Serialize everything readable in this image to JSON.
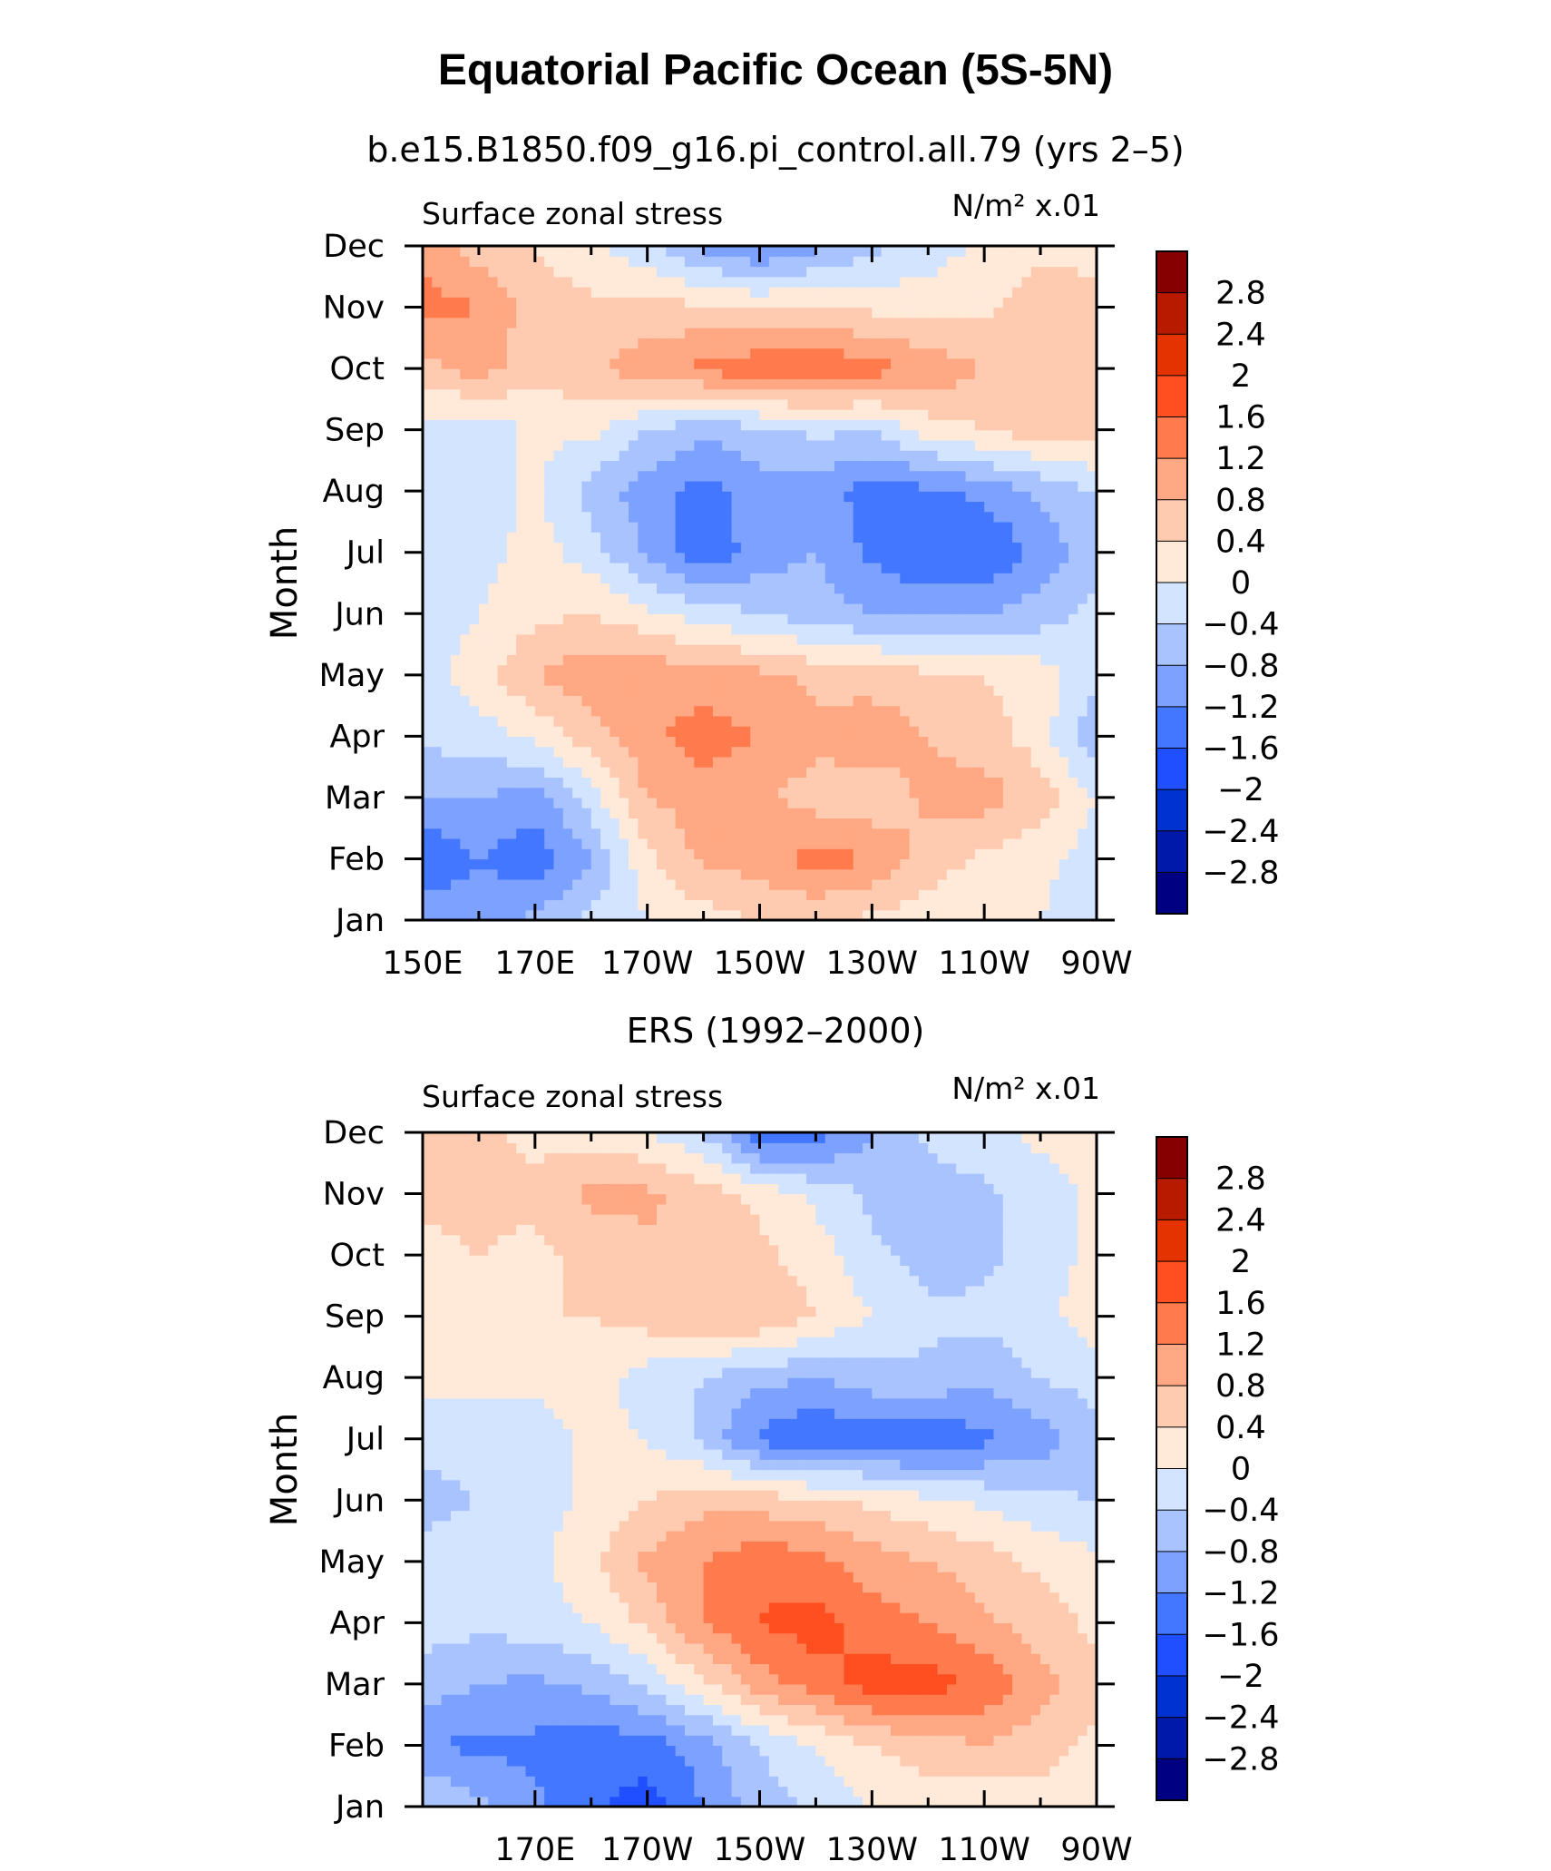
{
  "figure": {
    "title": "Equatorial Pacific Ocean (5S-5N)",
    "colors": {
      "levels": [
        -2.8,
        -2.4,
        -2.0,
        -1.6,
        -1.2,
        -0.8,
        -0.4,
        0,
        0.4,
        0.8,
        1.2,
        1.6,
        2.0,
        2.4,
        2.8
      ],
      "fills": [
        "#000083",
        "#0019a8",
        "#0032d2",
        "#1f4fff",
        "#4377ff",
        "#7ca1ff",
        "#a9c3ff",
        "#d2e4ff",
        "#ffe9d9",
        "#ffcbb0",
        "#ffa883",
        "#ff7b4d",
        "#ff4f20",
        "#e53300",
        "#b81a00",
        "#870000"
      ]
    },
    "legend_labels": [
      "2.8",
      "2.4",
      "2",
      "1.6",
      "1.2",
      "0.8",
      "0.4",
      "0",
      "−0.4",
      "−0.8",
      "−1.2",
      "−1.6",
      "−2",
      "−2.4",
      "−2.8"
    ]
  },
  "chart_data": [
    {
      "type": "heatmap",
      "subtitle": "b.e15.B1850.f09_g16.pi_control.all.79 (yrs 2–5)",
      "left_label": "Surface zonal stress",
      "right_label": "N/m² x.01",
      "ylabel": "Month",
      "xlabel": "",
      "x_ticks": [
        "150E",
        "170E",
        "170W",
        "150W",
        "130W",
        "110W",
        "90W"
      ],
      "y_ticks": [
        "Jan",
        "Feb",
        "Mar",
        "Apr",
        "May",
        "Jun",
        "Jul",
        "Aug",
        "Sep",
        "Oct",
        "Nov",
        "Dec"
      ],
      "x": [
        150,
        160,
        170,
        180,
        190,
        200,
        210,
        220,
        230,
        240,
        250,
        260,
        270
      ],
      "y": [
        "Jan",
        "Feb",
        "Mar",
        "Apr",
        "May",
        "Jun",
        "Jul",
        "Aug",
        "Sep",
        "Oct",
        "Nov",
        "Dec"
      ],
      "z": [
        [
          -0.9,
          -1.0,
          -0.7,
          -0.3,
          0.0,
          0.2,
          0.4,
          0.4,
          0.3,
          0.2,
          0.1,
          0.0,
          -0.2
        ],
        [
          -1.6,
          -1.2,
          -1.5,
          -0.8,
          0.3,
          0.9,
          1.0,
          1.4,
          1.2,
          0.6,
          0.3,
          0.1,
          -0.2
        ],
        [
          -0.8,
          -0.8,
          -1.0,
          -0.2,
          0.8,
          1.0,
          0.9,
          0.6,
          0.5,
          0.9,
          1.0,
          0.6,
          0.0
        ],
        [
          -0.3,
          -0.2,
          0.1,
          0.6,
          1.1,
          1.4,
          1.2,
          0.9,
          1.1,
          0.8,
          0.6,
          0.2,
          -0.8
        ],
        [
          -0.2,
          0.2,
          0.8,
          1.1,
          1.1,
          1.0,
          0.9,
          0.7,
          0.6,
          0.5,
          0.4,
          0.2,
          -0.3
        ],
        [
          -0.2,
          0.0,
          0.3,
          0.4,
          0.1,
          -0.2,
          -0.4,
          -0.6,
          -0.8,
          -0.9,
          -0.8,
          -0.6,
          -0.3
        ],
        [
          -0.4,
          -0.2,
          0.2,
          -0.2,
          -0.9,
          -1.5,
          -1.0,
          -0.8,
          -1.3,
          -1.6,
          -1.6,
          -1.1,
          -0.5
        ],
        [
          -0.2,
          -0.3,
          0.1,
          -0.6,
          -1.0,
          -1.4,
          -1.0,
          -1.0,
          -1.4,
          -1.3,
          -1.1,
          -0.7,
          -0.4
        ],
        [
          -0.2,
          -0.3,
          0.1,
          0.1,
          -0.4,
          -0.7,
          -0.5,
          -0.3,
          -0.4,
          0.2,
          0.4,
          0.6,
          0.6
        ],
        [
          0.6,
          1.0,
          0.5,
          0.7,
          1.1,
          1.3,
          1.5,
          1.6,
          1.4,
          1.1,
          0.8,
          0.7,
          0.6
        ],
        [
          1.4,
          1.2,
          0.6,
          0.5,
          0.5,
          0.5,
          0.4,
          0.4,
          0.3,
          0.2,
          0.3,
          0.6,
          0.5
        ],
        [
          1.0,
          0.6,
          0.4,
          0.1,
          -0.3,
          -0.9,
          -1.3,
          -0.9,
          -0.5,
          -0.2,
          0.1,
          0.3,
          0.3
        ]
      ]
    },
    {
      "type": "heatmap",
      "subtitle": "ERS (1992–2000)",
      "left_label": "Surface zonal stress",
      "right_label": "N/m² x.01",
      "ylabel": "Month",
      "xlabel": "",
      "x_ticks": [
        "170E",
        "170W",
        "150W",
        "130W",
        "110W",
        "90W"
      ],
      "y_ticks": [
        "Jan",
        "Feb",
        "Mar",
        "Apr",
        "May",
        "Jun",
        "Jul",
        "Aug",
        "Sep",
        "Oct",
        "Nov",
        "Dec"
      ],
      "x": [
        150,
        160,
        170,
        180,
        190,
        200,
        210,
        220,
        230,
        240,
        250,
        260,
        270
      ],
      "y": [
        "Jan",
        "Feb",
        "Mar",
        "Apr",
        "May",
        "Jun",
        "Jul",
        "Aug",
        "Sep",
        "Oct",
        "Nov",
        "Dec"
      ],
      "z": [
        [
          -0.3,
          -0.7,
          -1.1,
          -1.5,
          -1.8,
          -1.2,
          -0.6,
          -0.3,
          0.0,
          0.2,
          0.1,
          0.3,
          0.2
        ],
        [
          -1.2,
          -1.3,
          -1.3,
          -1.5,
          -1.4,
          -1.0,
          -0.4,
          0.0,
          0.4,
          0.6,
          0.8,
          0.5,
          0.3
        ],
        [
          -0.6,
          -0.8,
          -0.9,
          -0.7,
          -0.3,
          0.3,
          1.0,
          1.4,
          1.8,
          1.8,
          1.5,
          1.0,
          0.5
        ],
        [
          -0.2,
          -0.3,
          -0.2,
          0.0,
          0.5,
          1.2,
          1.6,
          1.8,
          1.4,
          1.2,
          0.9,
          0.6,
          0.3
        ],
        [
          -0.3,
          -0.2,
          -0.1,
          0.3,
          0.9,
          1.2,
          1.5,
          1.3,
          1.0,
          0.8,
          0.6,
          0.3,
          0.1
        ],
        [
          -0.5,
          -0.4,
          -0.2,
          0.1,
          0.4,
          0.7,
          0.6,
          0.5,
          0.3,
          0.1,
          -0.1,
          -0.3,
          -0.4
        ],
        [
          -0.3,
          -0.3,
          -0.2,
          0.1,
          0.0,
          -0.5,
          -1.3,
          -1.6,
          -1.4,
          -1.6,
          -1.3,
          -1.0,
          -0.6
        ],
        [
          0.2,
          0.2,
          0.1,
          0.2,
          -0.2,
          -0.4,
          -0.7,
          -0.8,
          -0.6,
          -0.5,
          -0.7,
          -0.4,
          -0.2
        ],
        [
          0.3,
          0.3,
          0.4,
          0.4,
          0.6,
          0.7,
          0.8,
          0.4,
          0.0,
          -0.3,
          -0.3,
          -0.1,
          0.2
        ],
        [
          0.3,
          0.4,
          0.3,
          0.5,
          0.7,
          0.7,
          0.5,
          0.2,
          -0.3,
          -0.6,
          -0.5,
          -0.2,
          0.1
        ],
        [
          0.5,
          0.5,
          0.5,
          0.9,
          0.9,
          0.6,
          0.3,
          -0.1,
          -0.5,
          -0.6,
          -0.5,
          -0.2,
          0.1
        ],
        [
          0.6,
          0.5,
          0.3,
          0.2,
          0.0,
          -0.4,
          -1.6,
          -1.4,
          -0.8,
          -0.3,
          -0.1,
          0.1,
          0.2
        ]
      ]
    }
  ]
}
